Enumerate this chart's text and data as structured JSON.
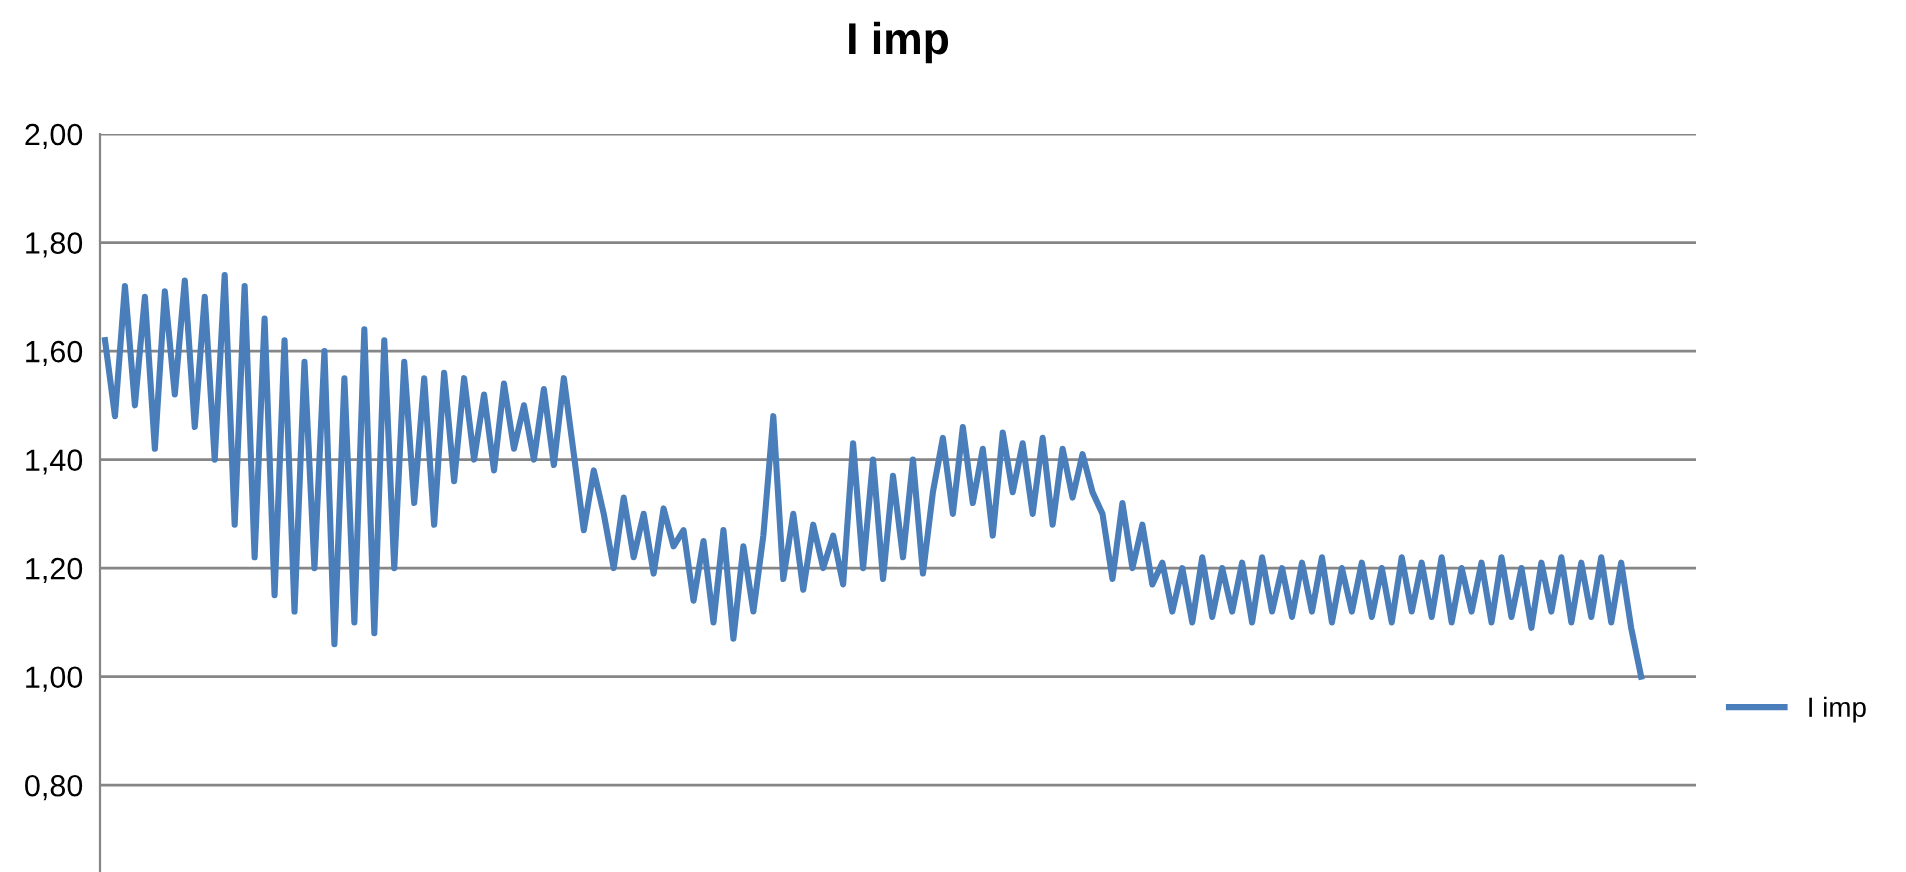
{
  "chart_data": {
    "type": "line",
    "title": "I imp",
    "categories": [
      null,
      null,
      null,
      null,
      null,
      null,
      null,
      null,
      null,
      null,
      null,
      null,
      null,
      null,
      null,
      null,
      null,
      null,
      null,
      null,
      null,
      null,
      null,
      null,
      null,
      null,
      null,
      null,
      null,
      null,
      null,
      null,
      null,
      null,
      null,
      null,
      null,
      null,
      null,
      null,
      null,
      null,
      null,
      null,
      null,
      null,
      null,
      null,
      null,
      null,
      null,
      null,
      null,
      null,
      null,
      null,
      null,
      null,
      null,
      null,
      null,
      null,
      null,
      null,
      null,
      null,
      null,
      null,
      null,
      null,
      null,
      null,
      null,
      null,
      null,
      null,
      null,
      null,
      null,
      null,
      null,
      null,
      null,
      null,
      null,
      null,
      null,
      null,
      null,
      null,
      null,
      null,
      null,
      null,
      null,
      null,
      null,
      null,
      null,
      null,
      null,
      null,
      null,
      null,
      null,
      null,
      null,
      null,
      null,
      null,
      null,
      null,
      null,
      null,
      null,
      null,
      null,
      null,
      null,
      null,
      null,
      null,
      null,
      null,
      null,
      null,
      null,
      null,
      null,
      null,
      null,
      null,
      null,
      null,
      null,
      null,
      null,
      null,
      null,
      null,
      null,
      null,
      null,
      null,
      null,
      null,
      null,
      null,
      null,
      null,
      null,
      null,
      null,
      null,
      null,
      null,
      null,
      null,
      null,
      null
    ],
    "series": [
      {
        "name": "I imp",
        "color": "#4a7ebb",
        "values": [
          1.62,
          1.48,
          1.72,
          1.5,
          1.7,
          1.42,
          1.71,
          1.52,
          1.73,
          1.46,
          1.7,
          1.4,
          1.74,
          1.28,
          1.72,
          1.22,
          1.66,
          1.15,
          1.62,
          1.12,
          1.58,
          1.2,
          1.6,
          1.06,
          1.55,
          1.1,
          1.64,
          1.08,
          1.62,
          1.2,
          1.58,
          1.32,
          1.55,
          1.28,
          1.56,
          1.36,
          1.55,
          1.4,
          1.52,
          1.38,
          1.54,
          1.42,
          1.5,
          1.4,
          1.53,
          1.39,
          1.55,
          1.41,
          1.27,
          1.38,
          1.3,
          1.2,
          1.33,
          1.22,
          1.3,
          1.19,
          1.31,
          1.24,
          1.27,
          1.14,
          1.25,
          1.1,
          1.27,
          1.07,
          1.24,
          1.12,
          1.26,
          1.48,
          1.18,
          1.3,
          1.16,
          1.28,
          1.2,
          1.26,
          1.17,
          1.43,
          1.2,
          1.4,
          1.18,
          1.37,
          1.22,
          1.4,
          1.19,
          1.34,
          1.44,
          1.3,
          1.46,
          1.32,
          1.42,
          1.26,
          1.45,
          1.34,
          1.43,
          1.3,
          1.44,
          1.28,
          1.42,
          1.33,
          1.41,
          1.34,
          1.3,
          1.18,
          1.32,
          1.2,
          1.28,
          1.17,
          1.21,
          1.12,
          1.2,
          1.1,
          1.22,
          1.11,
          1.2,
          1.12,
          1.21,
          1.1,
          1.22,
          1.12,
          1.2,
          1.11,
          1.21,
          1.12,
          1.22,
          1.1,
          1.2,
          1.12,
          1.21,
          1.11,
          1.2,
          1.1,
          1.22,
          1.12,
          1.21,
          1.11,
          1.22,
          1.1,
          1.2,
          1.12,
          1.21,
          1.1,
          1.22,
          1.11,
          1.2,
          1.09,
          1.21,
          1.12,
          1.22,
          1.1,
          1.21,
          1.11,
          1.22,
          1.1,
          1.21,
          1.09,
          1.0,
          null,
          null,
          null,
          null,
          null
        ]
      }
    ],
    "ylim": [
      0.64,
      2.0
    ],
    "yticks": [
      {
        "value": 0.8,
        "label": "0,80"
      },
      {
        "value": 1.0,
        "label": "1,00"
      },
      {
        "value": 1.2,
        "label": "1,20"
      },
      {
        "value": 1.4,
        "label": "1,40"
      },
      {
        "value": 1.6,
        "label": "1,60"
      },
      {
        "value": 1.8,
        "label": "1,80"
      },
      {
        "value": 2.0,
        "label": "2,00"
      }
    ],
    "grid": "y",
    "legend": "right",
    "tick_labels": "y",
    "marker": "none",
    "line_style": "solid"
  }
}
